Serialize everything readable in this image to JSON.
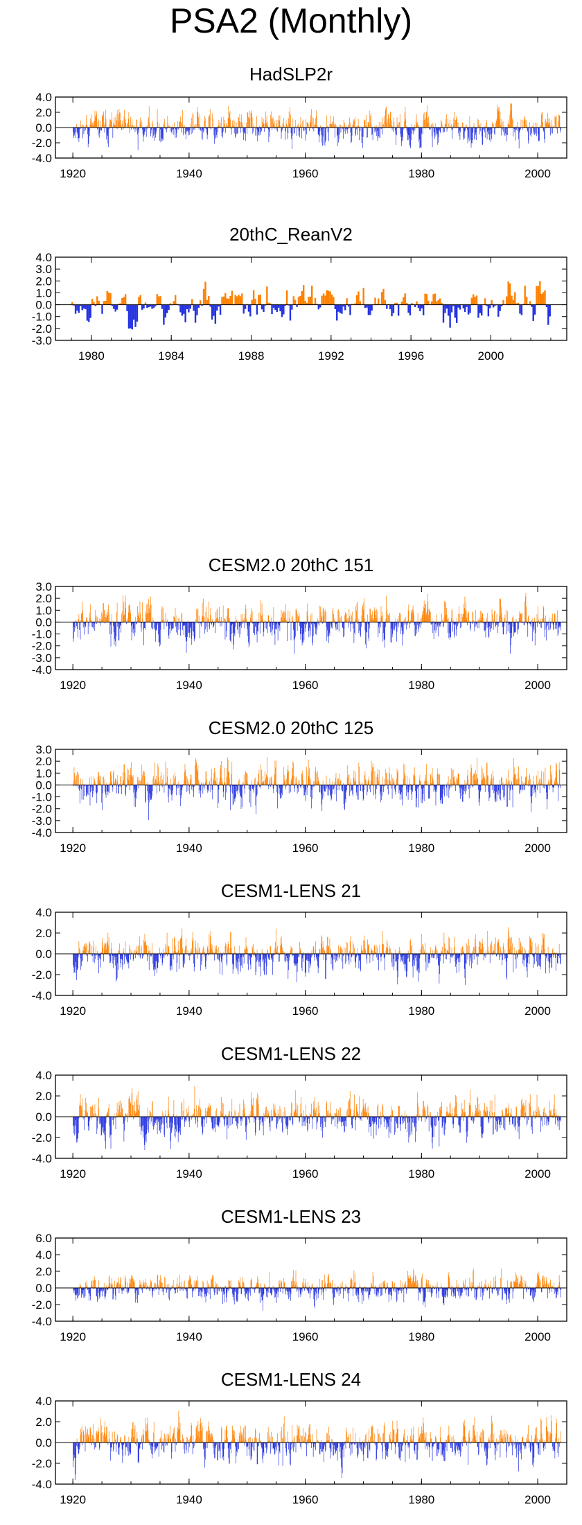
{
  "title": "PSA2 (Monthly)",
  "colors": {
    "positive": "#FF8000",
    "negative": "#2432E0",
    "axis": "#000000"
  },
  "chart_data": [
    {
      "type": "bar",
      "title": "HadSLP2r",
      "x_range": [
        1917,
        2005
      ],
      "data_x_range": [
        1920,
        2004
      ],
      "ylim": [
        -4.0,
        4.0
      ],
      "y_ticks": [
        4.0,
        2.0,
        0.0,
        -2.0,
        -4.0
      ],
      "y_tick_labels": [
        "4.0",
        "2.0",
        "0.0",
        "-2.0",
        "-4.0"
      ],
      "x_ticks": [
        1920,
        1940,
        1960,
        1980,
        2000
      ],
      "x_tick_labels": [
        "1920",
        "1940",
        "1960",
        "1980",
        "2000"
      ],
      "frequency": "monthly",
      "amplitude": 1.6,
      "typical_min": -3.0,
      "typical_max": 3.2,
      "seed": 11
    },
    {
      "type": "bar",
      "title": "20thC_ReanV2",
      "x_range": [
        1978.2,
        2003.8
      ],
      "data_x_range": [
        1979,
        2003
      ],
      "ylim": [
        -3.0,
        4.0
      ],
      "y_ticks": [
        4.0,
        3.0,
        2.0,
        1.0,
        0.0,
        -1.0,
        -2.0,
        -3.0
      ],
      "y_tick_labels": [
        "4.0",
        "3.0",
        "2.0",
        "1.0",
        "0.0",
        "-1.0",
        "-2.0",
        "-3.0"
      ],
      "x_ticks": [
        1980,
        1984,
        1988,
        1992,
        1996,
        2000
      ],
      "x_tick_labels": [
        "1980",
        "1984",
        "1988",
        "1992",
        "1996",
        "2000"
      ],
      "frequency": "monthly",
      "amplitude": 1.2,
      "typical_min": -2.2,
      "typical_max": 3.0,
      "seed": 23
    },
    {
      "type": "bar",
      "title": "CESM2.0 20thC 151",
      "x_range": [
        1917,
        2005
      ],
      "data_x_range": [
        1920,
        2004
      ],
      "ylim": [
        -4.0,
        3.0
      ],
      "y_ticks": [
        3.0,
        2.0,
        1.0,
        0.0,
        -1.0,
        -2.0,
        -3.0,
        -4.0
      ],
      "y_tick_labels": [
        "3.0",
        "2.0",
        "1.0",
        "0.0",
        "-1.0",
        "-2.0",
        "-3.0",
        "-4.0"
      ],
      "x_ticks": [
        1920,
        1940,
        1960,
        1980,
        2000
      ],
      "x_tick_labels": [
        "1920",
        "1940",
        "1960",
        "1980",
        "2000"
      ],
      "frequency": "monthly",
      "amplitude": 1.3,
      "typical_min": -2.8,
      "typical_max": 2.8,
      "seed": 37
    },
    {
      "type": "bar",
      "title": "CESM2.0 20thC 125",
      "x_range": [
        1917,
        2005
      ],
      "data_x_range": [
        1920,
        2004
      ],
      "ylim": [
        -4.0,
        3.0
      ],
      "y_ticks": [
        3.0,
        2.0,
        1.0,
        0.0,
        -1.0,
        -2.0,
        -3.0,
        -4.0
      ],
      "y_tick_labels": [
        "3.0",
        "2.0",
        "1.0",
        "0.0",
        "-1.0",
        "-2.0",
        "-3.0",
        "-4.0"
      ],
      "x_ticks": [
        1920,
        1940,
        1960,
        1980,
        2000
      ],
      "x_tick_labels": [
        "1920",
        "1940",
        "1960",
        "1980",
        "2000"
      ],
      "frequency": "monthly",
      "amplitude": 1.3,
      "typical_min": -3.0,
      "typical_max": 2.4,
      "seed": 41
    },
    {
      "type": "bar",
      "title": "CESM1-LENS 21",
      "x_range": [
        1917,
        2005
      ],
      "data_x_range": [
        1920,
        2004
      ],
      "ylim": [
        -4.0,
        4.0
      ],
      "y_ticks": [
        4.0,
        2.0,
        0.0,
        -2.0,
        -4.0
      ],
      "y_tick_labels": [
        "4.0",
        "2.0",
        "0.0",
        "-2.0",
        "-4.0"
      ],
      "x_ticks": [
        1920,
        1940,
        1960,
        1980,
        2000
      ],
      "x_tick_labels": [
        "1920",
        "1940",
        "1960",
        "1980",
        "2000"
      ],
      "frequency": "monthly",
      "amplitude": 1.4,
      "typical_min": -3.2,
      "typical_max": 2.8,
      "seed": 53
    },
    {
      "type": "bar",
      "title": "CESM1-LENS 22",
      "x_range": [
        1917,
        2005
      ],
      "data_x_range": [
        1920,
        2004
      ],
      "ylim": [
        -4.0,
        4.0
      ],
      "y_ticks": [
        4.0,
        2.0,
        0.0,
        -2.0,
        -4.0
      ],
      "y_tick_labels": [
        "4.0",
        "2.0",
        "0.0",
        "-2.0",
        "-4.0"
      ],
      "x_ticks": [
        1920,
        1940,
        1960,
        1980,
        2000
      ],
      "x_tick_labels": [
        "1920",
        "1940",
        "1960",
        "1980",
        "2000"
      ],
      "frequency": "monthly",
      "amplitude": 1.5,
      "typical_min": -3.2,
      "typical_max": 3.4,
      "seed": 67
    },
    {
      "type": "bar",
      "title": "CESM1-LENS 23",
      "x_range": [
        1917,
        2005
      ],
      "data_x_range": [
        1920,
        2004
      ],
      "ylim": [
        -4.0,
        6.0
      ],
      "y_ticks": [
        6.0,
        4.0,
        2.0,
        0.0,
        -2.0,
        -4.0
      ],
      "y_tick_labels": [
        "6.0",
        "4.0",
        "2.0",
        "0.0",
        "-2.0",
        "-4.0"
      ],
      "x_ticks": [
        1920,
        1940,
        1960,
        1980,
        2000
      ],
      "x_tick_labels": [
        "1920",
        "1940",
        "1960",
        "1980",
        "2000"
      ],
      "frequency": "monthly",
      "amplitude": 1.3,
      "typical_min": -3.0,
      "typical_max": 4.0,
      "seed": 79
    },
    {
      "type": "bar",
      "title": "CESM1-LENS 24",
      "x_range": [
        1917,
        2005
      ],
      "data_x_range": [
        1920,
        2004
      ],
      "ylim": [
        -4.0,
        4.0
      ],
      "y_ticks": [
        4.0,
        2.0,
        0.0,
        -2.0,
        -4.0
      ],
      "y_tick_labels": [
        "4.0",
        "2.0",
        "0.0",
        "-2.0",
        "-4.0"
      ],
      "x_ticks": [
        1920,
        1940,
        1960,
        1980,
        2000
      ],
      "x_tick_labels": [
        "1920",
        "1940",
        "1960",
        "1980",
        "2000"
      ],
      "frequency": "monthly",
      "amplitude": 1.5,
      "typical_min": -3.6,
      "typical_max": 3.2,
      "seed": 97
    }
  ]
}
